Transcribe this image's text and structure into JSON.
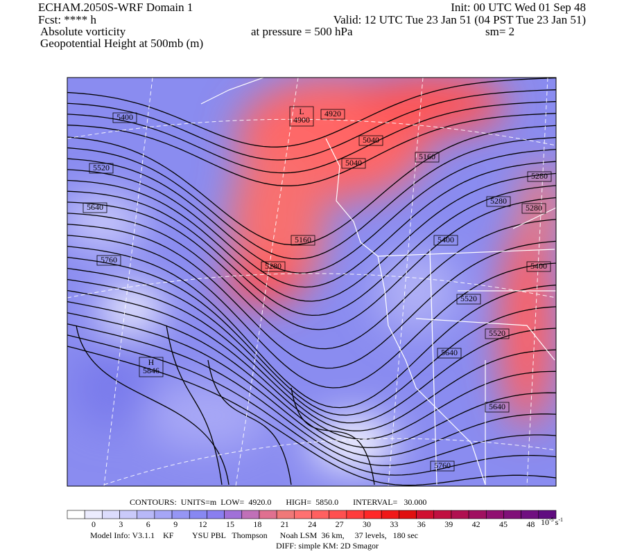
{
  "header": {
    "title": "ECHAM.2050S-WRF Domain 1",
    "init": "Init: 00 UTC Wed 01 Sep 48",
    "forecast": "Fcst: **** h",
    "valid": "Valid: 12 UTC Tue 23 Jan 51 (04 PST Tue 23 Jan 51)",
    "field": "Absolute vorticity",
    "pressure": "at pressure =  500 hPa",
    "smoothing": "sm= 2",
    "contour_field": "Geopotential Height at 500mb (m)"
  },
  "map": {
    "contour_labels": [
      "5400",
      "5520",
      "5640",
      "5760",
      "4920",
      "5040",
      "5040",
      "5160",
      "5160",
      "5280",
      "5280",
      "5280",
      "5280",
      "5400",
      "5400",
      "5520",
      "5520",
      "5640",
      "5640",
      "5760"
    ],
    "extrema": [
      {
        "letter": "L",
        "value": "4900"
      },
      {
        "letter": "H",
        "value": "5846"
      }
    ]
  },
  "footer": {
    "contours": "CONTOURS:  UNITS=m  LOW=  4920.0       HIGH=  5850.0       INTERVAL=   30.000",
    "colorbar_labels": [
      "0",
      "3",
      "6",
      "9",
      "12",
      "15",
      "18",
      "21",
      "24",
      "27",
      "30",
      "33",
      "36",
      "39",
      "42",
      "45",
      "48"
    ],
    "colorbar_unit": {
      "base": "10",
      "exp": "-5",
      "unit": "s",
      "unit_exp": "-1"
    },
    "model_info": "Model Info: V3.1.1    KF         YSU PBL   Thompson      Noah LSM  36 km,     37 levels,   180 sec",
    "diff": "DIFF: simple KM: 2D Smagor"
  }
}
